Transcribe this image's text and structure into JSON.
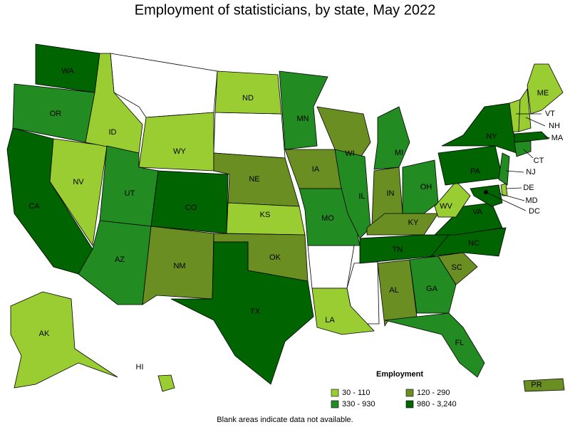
{
  "map": {
    "title": "Employment of statisticians, by state, May 2022",
    "footnote": "Blank areas indicate data not available.",
    "legend": {
      "title": "Employment",
      "items": [
        {
          "label": "30 - 110",
          "color": "#9acd32"
        },
        {
          "label": "120 - 290",
          "color": "#6b8e23"
        },
        {
          "label": "330 - 930",
          "color": "#228b22"
        },
        {
          "label": "980 - 3,240",
          "color": "#006400"
        }
      ]
    },
    "states": [
      {
        "label": "WA",
        "category": 3
      },
      {
        "label": "OR",
        "category": 2
      },
      {
        "label": "CA",
        "category": 3
      },
      {
        "label": "NV",
        "category": 0
      },
      {
        "label": "ID",
        "category": 0
      },
      {
        "label": "WY",
        "category": 0
      },
      {
        "label": "UT",
        "category": 2
      },
      {
        "label": "CO",
        "category": 3
      },
      {
        "label": "AZ",
        "category": 2
      },
      {
        "label": "NM",
        "category": 1
      },
      {
        "label": "ND",
        "category": 0
      },
      {
        "label": "NE",
        "category": 1
      },
      {
        "label": "KS",
        "category": 0
      },
      {
        "label": "OK",
        "category": 1
      },
      {
        "label": "TX",
        "category": 3
      },
      {
        "label": "MN",
        "category": 2
      },
      {
        "label": "IA",
        "category": 1
      },
      {
        "label": "MO",
        "category": 2
      },
      {
        "label": "LA",
        "category": 0
      },
      {
        "label": "WI",
        "category": 1
      },
      {
        "label": "IL",
        "category": 2
      },
      {
        "label": "MI",
        "category": 2
      },
      {
        "label": "IN",
        "category": 1
      },
      {
        "label": "OH",
        "category": 2
      },
      {
        "label": "KY",
        "category": 1
      },
      {
        "label": "TN",
        "category": 3
      },
      {
        "label": "AL",
        "category": 1
      },
      {
        "label": "GA",
        "category": 2
      },
      {
        "label": "FL",
        "category": 2
      },
      {
        "label": "SC",
        "category": 1
      },
      {
        "label": "NC",
        "category": 3
      },
      {
        "label": "VA",
        "category": 3
      },
      {
        "label": "WV",
        "category": 0
      },
      {
        "label": "PA",
        "category": 3
      },
      {
        "label": "NY",
        "category": 3
      },
      {
        "label": "VT",
        "category": 0
      },
      {
        "label": "NH",
        "category": 0
      },
      {
        "label": "ME",
        "category": 0
      },
      {
        "label": "MA",
        "category": 3
      },
      {
        "label": "CT",
        "category": 2
      },
      {
        "label": "NJ",
        "category": 2
      },
      {
        "label": "DE",
        "category": 0
      },
      {
        "label": "MD",
        "category": 3
      },
      {
        "label": "DC",
        "category": 3
      },
      {
        "label": "AK",
        "category": 0
      },
      {
        "label": "HI",
        "category": 0
      },
      {
        "label": "PR",
        "category": 1
      }
    ]
  }
}
